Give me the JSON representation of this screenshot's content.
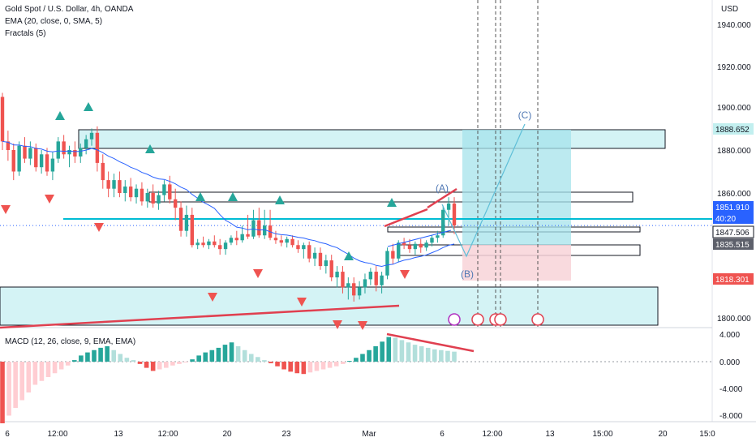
{
  "header": {
    "title": "Gold Spot / U.S. Dollar, 4h, OANDA",
    "indicators": [
      "EMA (20, close, 0, SMA, 5)",
      "Fractals (5)"
    ]
  },
  "macd_label": "MACD (12, 26, close, 9, EMA, EMA)",
  "currency": "USD",
  "colors": {
    "up": "#26a69a",
    "down": "#ef5350",
    "ema": "#2962ff",
    "zone_fill": "#d4f3f5",
    "projection": "#5fbfd8",
    "trend_red": "#e04050"
  },
  "chart_data": [
    {
      "type": "candlestick",
      "title": "Gold Spot / U.S. Dollar, 4h, OANDA",
      "price_axis": {
        "labels": [
          "1940.000",
          "1920.000",
          "1900.000",
          "1880.000",
          "1860.000",
          "1800.000"
        ],
        "range": [
          1796,
          1942
        ]
      },
      "time_axis": {
        "labels": [
          "6",
          "12:00",
          "13",
          "12:00",
          "20",
          "23",
          "Mar",
          "6",
          "12:00",
          "13",
          "15:00",
          "20",
          "15:0"
        ]
      },
      "price_tags": [
        {
          "value": "1888.652",
          "style": "teal"
        },
        {
          "value": "1851.910",
          "style": "blue"
        },
        {
          "value": "40:20",
          "style": "blue"
        },
        {
          "value": "1847.506",
          "style": "white"
        },
        {
          "value": "1835.515",
          "style": "gray"
        },
        {
          "value": "1818.301",
          "style": "red"
        }
      ],
      "wave_labels": [
        "(A)",
        "(B)",
        "(C)"
      ],
      "current_price": 1849,
      "candles": [
        [
          1905,
          1907,
          1880,
          1884
        ],
        [
          1884,
          1889,
          1875,
          1880
        ],
        [
          1880,
          1883,
          1866,
          1870
        ],
        [
          1870,
          1884,
          1868,
          1882
        ],
        [
          1882,
          1886,
          1874,
          1876
        ],
        [
          1876,
          1884,
          1873,
          1881
        ],
        [
          1881,
          1883,
          1870,
          1872
        ],
        [
          1872,
          1880,
          1869,
          1878
        ],
        [
          1878,
          1881,
          1868,
          1870
        ],
        [
          1870,
          1879,
          1866,
          1876
        ],
        [
          1876,
          1886,
          1874,
          1884
        ],
        [
          1884,
          1887,
          1876,
          1878
        ],
        [
          1878,
          1882,
          1872,
          1880
        ],
        [
          1880,
          1884,
          1874,
          1877
        ],
        [
          1877,
          1883,
          1874,
          1881
        ],
        [
          1881,
          1887,
          1878,
          1885
        ],
        [
          1885,
          1890,
          1882,
          1888
        ],
        [
          1888,
          1891,
          1870,
          1874
        ],
        [
          1874,
          1878,
          1862,
          1866
        ],
        [
          1866,
          1870,
          1858,
          1862
        ],
        [
          1862,
          1869,
          1858,
          1866
        ],
        [
          1866,
          1870,
          1858,
          1860
        ],
        [
          1860,
          1866,
          1856,
          1863
        ],
        [
          1863,
          1867,
          1856,
          1858
        ],
        [
          1858,
          1864,
          1855,
          1862
        ],
        [
          1862,
          1865,
          1854,
          1856
        ],
        [
          1856,
          1862,
          1853,
          1860
        ],
        [
          1860,
          1864,
          1853,
          1855
        ],
        [
          1855,
          1861,
          1852,
          1859
        ],
        [
          1859,
          1866,
          1856,
          1864
        ],
        [
          1864,
          1868,
          1855,
          1857
        ],
        [
          1857,
          1862,
          1850,
          1853
        ],
        [
          1853,
          1856,
          1845,
          1848
        ],
        [
          1848,
          1854,
          1845,
          1851
        ],
        [
          1851,
          1853,
          1836,
          1838
        ],
        [
          1838,
          1843,
          1835,
          1840
        ],
        [
          1840,
          1845,
          1836,
          1838
        ],
        [
          1838,
          1843,
          1835,
          1841
        ],
        [
          1841,
          1846,
          1836,
          1838
        ],
        [
          1838,
          1843,
          1832,
          1835
        ],
        [
          1835,
          1842,
          1832,
          1840
        ],
        [
          1840,
          1846,
          1838,
          1844
        ],
        [
          1844,
          1848,
          1838,
          1842
        ],
        [
          1842,
          1849,
          1840,
          1847
        ],
        [
          1847,
          1851,
          1843,
          1845
        ],
        [
          1845,
          1852,
          1843,
          1850
        ],
        [
          1850,
          1853,
          1844,
          1846
        ],
        [
          1846,
          1852,
          1843,
          1849
        ],
        [
          1849,
          1852,
          1842,
          1844
        ],
        [
          1844,
          1848,
          1839,
          1842
        ],
        [
          1842,
          1846,
          1837,
          1840
        ],
        [
          1840,
          1845,
          1836,
          1843
        ],
        [
          1843,
          1846,
          1836,
          1838
        ],
        [
          1838,
          1842,
          1833,
          1835
        ],
        [
          1835,
          1840,
          1830,
          1838
        ],
        [
          1838,
          1841,
          1828,
          1830
        ],
        [
          1830,
          1836,
          1826,
          1833
        ],
        [
          1833,
          1836,
          1824,
          1826
        ],
        [
          1826,
          1832,
          1822,
          1829
        ],
        [
          1829,
          1832,
          1818,
          1820
        ],
        [
          1820,
          1826,
          1815,
          1823
        ],
        [
          1823,
          1826,
          1812,
          1815
        ],
        [
          1815,
          1820,
          1809,
          1817
        ],
        [
          1817,
          1820,
          1808,
          1811
        ],
        [
          1811,
          1818,
          1809,
          1815
        ],
        [
          1815,
          1822,
          1812,
          1819
        ],
        [
          1819,
          1825,
          1816,
          1823
        ],
        [
          1823,
          1826,
          1813,
          1816
        ],
        [
          1816,
          1823,
          1812,
          1821
        ],
        [
          1821,
          1836,
          1819,
          1834
        ],
        [
          1834,
          1839,
          1827,
          1830
        ],
        [
          1830,
          1842,
          1828,
          1840
        ],
        [
          1840,
          1844,
          1835,
          1838
        ],
        [
          1838,
          1843,
          1833,
          1835
        ],
        [
          1835,
          1841,
          1832,
          1839
        ],
        [
          1839,
          1843,
          1833,
          1836
        ],
        [
          1836,
          1842,
          1834,
          1840
        ],
        [
          1840,
          1846,
          1837,
          1844
        ],
        [
          1844,
          1848,
          1840,
          1846
        ],
        [
          1846,
          1854,
          1844,
          1852
        ],
        [
          1852,
          1858,
          1849,
          1855
        ],
        [
          1855,
          1858,
          1847,
          1849
        ]
      ]
    },
    {
      "type": "bar",
      "title": "MACD (12, 26, close, 9, EMA, EMA)",
      "axis_labels": [
        "4.000",
        "0.000",
        "-4.000",
        "-8.000"
      ],
      "range": [
        -9,
        4.5
      ],
      "values": [
        -8,
        -7,
        -6,
        -5,
        -4,
        -3,
        -2.5,
        -2,
        -1.5,
        -1,
        -0.5,
        0.2,
        0.8,
        1.2,
        1.5,
        1.8,
        2,
        1.5,
        1,
        0.5,
        0.2,
        -0.3,
        -0.8,
        -1.2,
        -1,
        -0.8,
        -0.5,
        -0.3,
        -0.1,
        0.3,
        0.8,
        1.2,
        1.5,
        1.8,
        2.2,
        2.5,
        2,
        1.5,
        1,
        0.6,
        0.2,
        -0.2,
        -0.6,
        -1,
        -1.3,
        -1.5,
        -1.6,
        -1.4,
        -1.2,
        -1,
        -0.8,
        -0.6,
        -0.3,
        0.1,
        0.5,
        1,
        1.5,
        2,
        2.6,
        3.2,
        3.1,
        2.8,
        2.5,
        2.2,
        2,
        1.8,
        1.6,
        1.5,
        1.4,
        1.3
      ]
    }
  ]
}
